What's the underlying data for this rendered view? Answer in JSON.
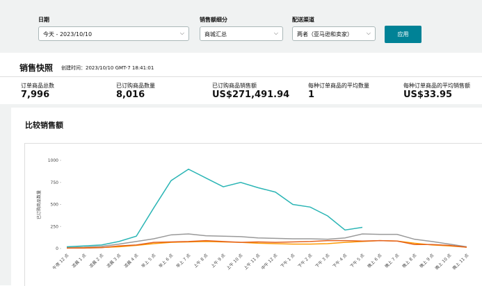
{
  "filters": [
    {
      "label": "日期",
      "value": "今天 - 2023/10/10"
    },
    {
      "label": "销售额细分",
      "value": "商城汇总"
    },
    {
      "label": "配送渠道",
      "value": "两者（亚马逊和卖家）"
    }
  ],
  "apply_button": "应用",
  "snapshot": {
    "title": "销售快照",
    "created": "创建时间：2023/10/10 GMT-7 18:41:01",
    "metrics": [
      {
        "label": "订单商品总数",
        "value": "7,996"
      },
      {
        "label": "已订购商品数量",
        "value": "8,016"
      },
      {
        "label": "已订购商品销售额",
        "value": "US$271,491.94"
      },
      {
        "label": "每种订单商品的平均数量",
        "value": "1"
      },
      {
        "label": "每种订单商品的平均销售额",
        "value": "US$33.95"
      }
    ]
  },
  "chart_data": {
    "type": "line",
    "title": "比较销售额",
    "y_label": "已订购商品数量",
    "categories": [
      "午夜 12 点",
      "凌晨 1 点",
      "凌晨 2 点",
      "凌晨 3 点",
      "凌晨 4 点",
      "早上 5 点",
      "早上 6 点",
      "早上 7 点",
      "上午 8 点",
      "上午 9 点",
      "上午 10 点",
      "上午 11 点",
      "中午 12 点",
      "下午 1 点",
      "下午 2 点",
      "下午 3 点",
      "下午 4 点",
      "下午 5 点",
      "晚上 6 点",
      "晚上 7 点",
      "晚上 8 点",
      "晚上 9 点",
      "晚上 10 点",
      "晚上 11 点"
    ],
    "series": [
      {
        "color": "#999999",
        "values": [
          10,
          15,
          25,
          50,
          80,
          110,
          155,
          165,
          145,
          140,
          135,
          120,
          115,
          110,
          110,
          105,
          120,
          165,
          160,
          160,
          105,
          80,
          50,
          20
        ]
      },
      {
        "color": "#ff9900",
        "values": [
          5,
          8,
          12,
          20,
          35,
          55,
          70,
          75,
          80,
          75,
          70,
          60,
          55,
          50,
          50,
          55,
          70,
          80,
          90,
          85,
          60,
          40,
          30,
          15
        ]
      },
      {
        "color": "#e3611e",
        "values": [
          5,
          5,
          10,
          30,
          40,
          70,
          75,
          80,
          90,
          80,
          70,
          75,
          70,
          75,
          80,
          90,
          90,
          85,
          90,
          85,
          45,
          45,
          35,
          15
        ]
      },
      {
        "color": "#2bb5b5",
        "values": [
          20,
          30,
          40,
          80,
          140,
          460,
          770,
          900,
          800,
          700,
          750,
          690,
          640,
          500,
          470,
          370,
          210,
          240,
          null,
          null,
          null,
          null,
          null,
          null
        ]
      }
    ],
    "ylim": [
      0,
      1000
    ],
    "yticks": [
      0,
      250,
      500,
      750,
      {
        "value": 1000,
        "label": "1000"
      }
    ]
  }
}
